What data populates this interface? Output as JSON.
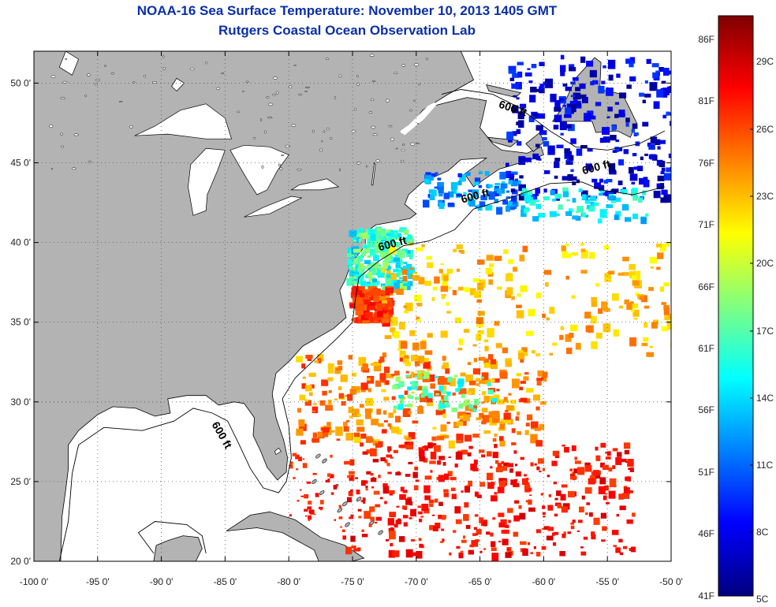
{
  "title": "NOAA-16 Sea Surface Temperature:  November 10, 2013 1405 GMT",
  "subtitle": "Rutgers Coastal Ocean Observation Lab",
  "map": {
    "lon_range": [
      -100,
      -50
    ],
    "lat_range": [
      20,
      52
    ],
    "lon_ticks": [
      {
        "value": -100,
        "label": "-100 0'"
      },
      {
        "value": -95,
        "label": "-95 0'"
      },
      {
        "value": -90,
        "label": "-90 0'"
      },
      {
        "value": -85,
        "label": "-85 0'"
      },
      {
        "value": -80,
        "label": "-80 0'"
      },
      {
        "value": -75,
        "label": "-75 0'"
      },
      {
        "value": -70,
        "label": "-70 0'"
      },
      {
        "value": -65,
        "label": "-65 0'"
      },
      {
        "value": -60,
        "label": "-60 0'"
      },
      {
        "value": -55,
        "label": "-55 0'"
      },
      {
        "value": -50,
        "label": "-50 0'"
      }
    ],
    "lat_ticks": [
      {
        "value": 50,
        "label": "50 0'"
      },
      {
        "value": 45,
        "label": "45 0'"
      },
      {
        "value": 40,
        "label": "40 0'"
      },
      {
        "value": 35,
        "label": "35 0'"
      },
      {
        "value": 30,
        "label": "30 0'"
      },
      {
        "value": 25,
        "label": "25 0'"
      },
      {
        "value": 20,
        "label": "20 0'"
      }
    ],
    "grid": true,
    "land_color": "#b3b3b3",
    "ocean_color": "#ffffff",
    "contour_label": "600 ft",
    "contour_labels": [
      {
        "text": "600 ft",
        "lon": -62.5,
        "lat": 48.2
      },
      {
        "text": "600 ft",
        "lon": -55.8,
        "lat": 44.5
      },
      {
        "text": "600 ft",
        "lon": -65.3,
        "lat": 42.7
      },
      {
        "text": "600 ft",
        "lon": -71.8,
        "lat": 39.7
      },
      {
        "text": "600 ft",
        "lon": -85.5,
        "lat": 27.8
      }
    ]
  },
  "colorbar": {
    "range_c": [
      5,
      31
    ],
    "colors": [
      "#00007f",
      "#0000ff",
      "#0080ff",
      "#00ffff",
      "#80ff80",
      "#ffff00",
      "#ff8000",
      "#ff0000",
      "#7f0000"
    ],
    "f_labels": [
      "86F",
      "81F",
      "76F",
      "71F",
      "66F",
      "61F",
      "56F",
      "51F",
      "46F",
      "41F"
    ],
    "c_labels": [
      "29C",
      "26C",
      "23C",
      "20C",
      "17C",
      "14C",
      "11C",
      "8C",
      "5C"
    ]
  }
}
